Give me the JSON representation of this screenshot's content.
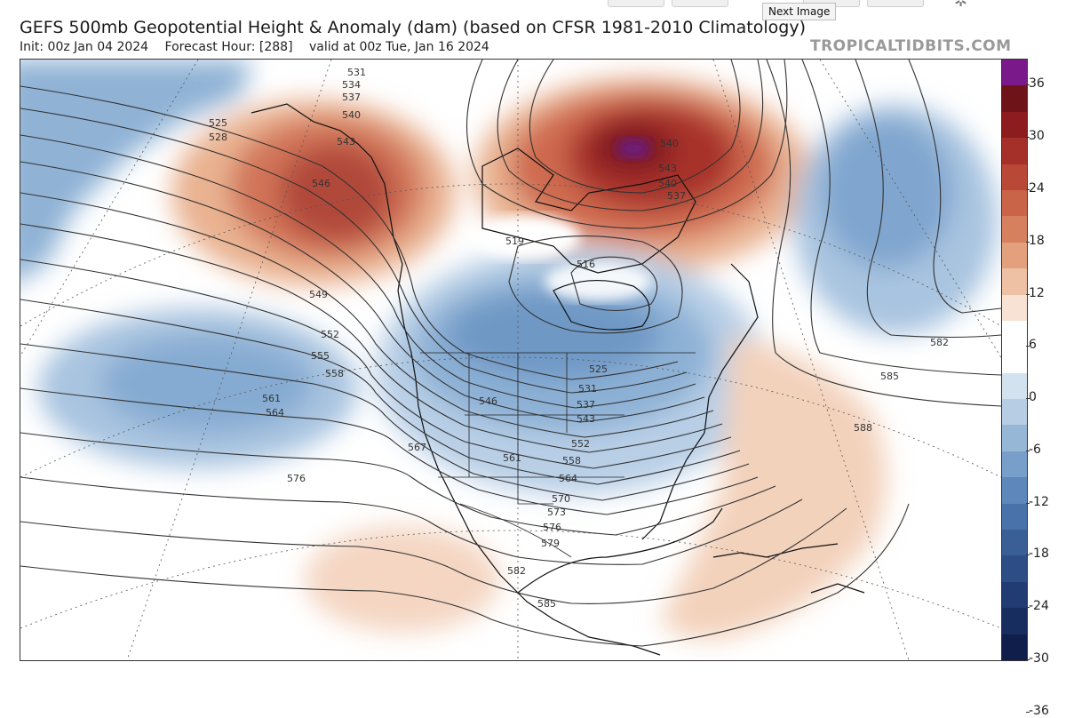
{
  "header": {
    "title": "GEFS 500mb Geopotential Height & Anomaly (dam) (based on CFSR 1981-2010 Climatology)",
    "init": "Init: 00z Jan 04 2024",
    "forecast_hour": "Forecast Hour: [288]",
    "valid": "valid at 00z Tue, Jan 16 2024",
    "brand": "TROPICALTIDBITS.COM",
    "tooltip": "Next Image"
  },
  "colorbar": {
    "ticks": [
      "36",
      "30",
      "24",
      "18",
      "12",
      "6",
      "0",
      "-6",
      "-12",
      "-18",
      "-24",
      "-30",
      "-36"
    ],
    "colors": [
      "#7a1a8a",
      "#6e1418",
      "#8c1c1e",
      "#a5302a",
      "#b94836",
      "#c96448",
      "#d6805e",
      "#e2a07c",
      "#eec0a4",
      "#f7e2d4",
      "#ffffff",
      "#ffffff",
      "#d3e2ef",
      "#b6cde3",
      "#97b7d7",
      "#789fca",
      "#5e88bb",
      "#4a72aa",
      "#3a5f97",
      "#2d4d86",
      "#213c73",
      "#172c5f",
      "#0f1e4b"
    ]
  },
  "contour_labels": [
    "531",
    "534",
    "537",
    "540",
    "543",
    "546",
    "525",
    "528",
    "549",
    "552",
    "555",
    "558",
    "561",
    "564",
    "567",
    "576",
    "519",
    "516",
    "525",
    "531",
    "537",
    "543",
    "546",
    "552",
    "558",
    "561",
    "564",
    "570",
    "573",
    "576",
    "579",
    "582",
    "585",
    "540",
    "543",
    "540",
    "537",
    "582",
    "585",
    "588"
  ]
}
